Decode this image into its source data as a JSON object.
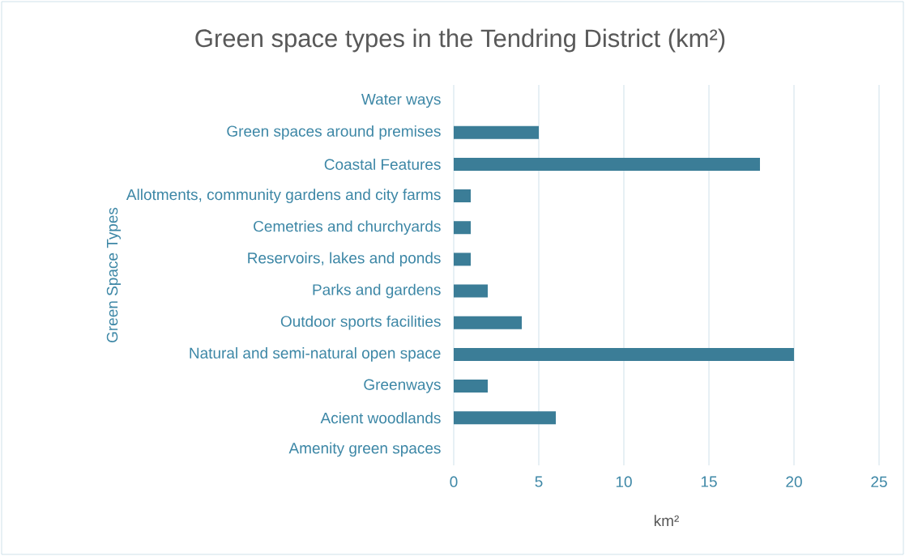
{
  "chart_data": {
    "type": "bar",
    "orientation": "horizontal",
    "title": "Green space types in the Tendring District (km²)",
    "xlabel": "km²",
    "ylabel": "Green Space Types",
    "categories": [
      "Water ways",
      "Green spaces around premises",
      "Coastal Features",
      "Allotments, community gardens and city farms",
      "Cemetries and churchyards",
      "Reservoirs, lakes and ponds",
      "Parks and gardens",
      "Outdoor sports facilities",
      "Natural and semi-natural open space",
      "Greenways",
      "Acient woodlands",
      "Amenity green spaces"
    ],
    "values": [
      0,
      5,
      18,
      1,
      1,
      1,
      2,
      4,
      20,
      2,
      6,
      0
    ],
    "color": "#3b7d97",
    "xlim": [
      0,
      25
    ],
    "xticks": [
      0,
      5,
      10,
      15,
      20,
      25
    ],
    "grid": "x"
  }
}
